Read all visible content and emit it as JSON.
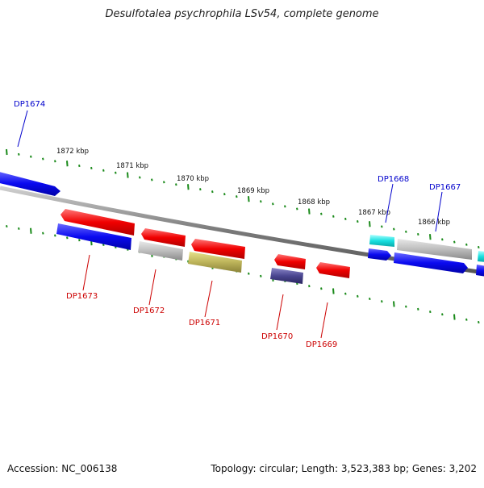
{
  "title": "Desulfotalea psychrophila LSv54, complete genome",
  "footer": {
    "accession": "Accession: NC_006138",
    "summary": "Topology: circular; Length: 3,523,383 bp; Genes: 3,202"
  },
  "colors": {
    "backbone": "#808080",
    "tick": "#1a8a1a",
    "forward_label": "#0000cc",
    "reverse_label": "#cc0000"
  },
  "scale_labels": [
    "1872 kbp",
    "1871 kbp",
    "1870 kbp",
    "1869 kbp",
    "1868 kbp",
    "1867 kbp",
    "1866 kbp"
  ],
  "genes": {
    "DP1674": {
      "label": "DP1674",
      "strand": "forward"
    },
    "DP1673": {
      "label": "DP1673",
      "strand": "reverse"
    },
    "DP1672": {
      "label": "DP1672",
      "strand": "reverse"
    },
    "DP1671": {
      "label": "DP1671",
      "strand": "reverse"
    },
    "DP1670": {
      "label": "DP1670",
      "strand": "reverse"
    },
    "DP1669": {
      "label": "DP1669",
      "strand": "reverse"
    },
    "DP1668": {
      "label": "DP1668",
      "strand": "forward"
    },
    "DP1667": {
      "label": "DP1667",
      "strand": "forward"
    }
  }
}
